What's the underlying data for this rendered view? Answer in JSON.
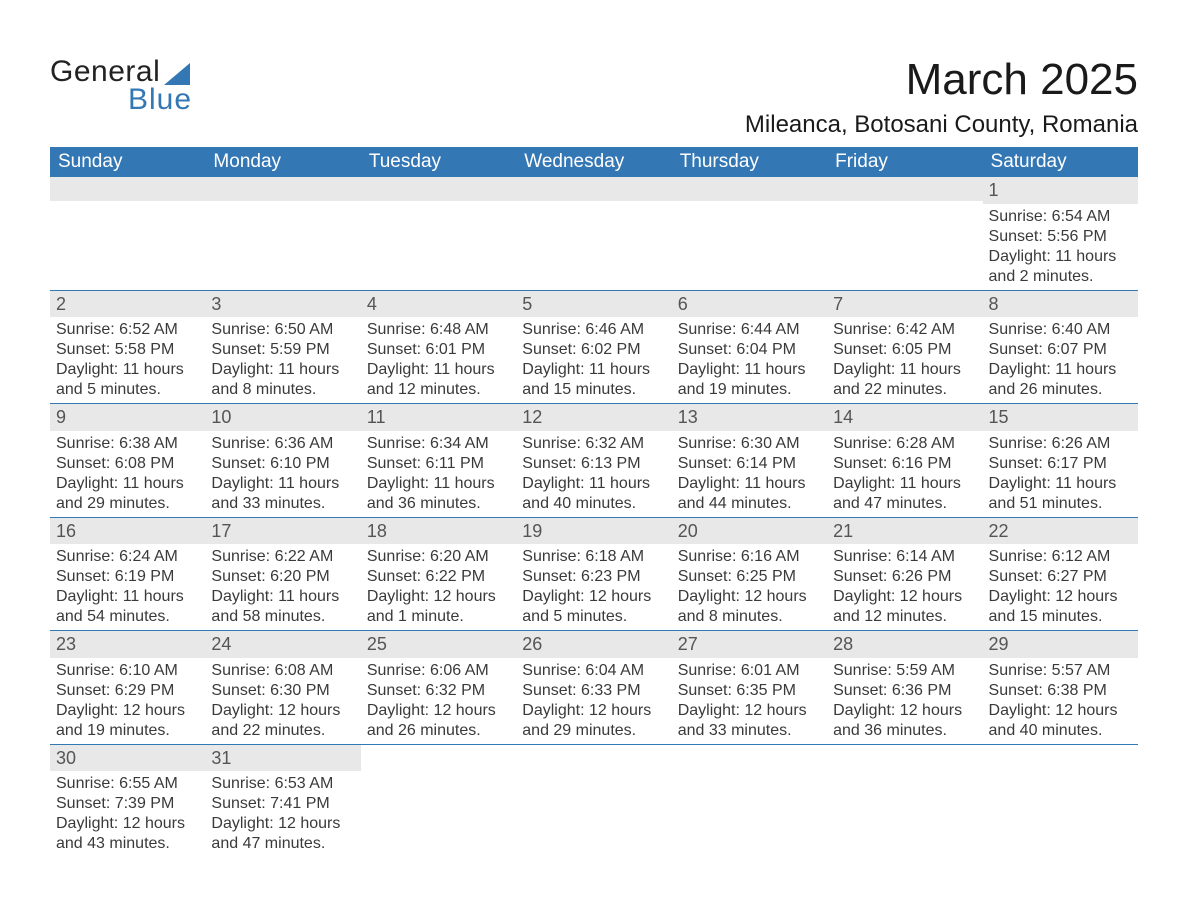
{
  "logo": {
    "line1": "General",
    "line2": "Blue"
  },
  "title": "March 2025",
  "location": "Mileanca, Botosani County, Romania",
  "colors": {
    "header_blue": "#3477b5",
    "daynum_bg": "#e8e8e8",
    "text": "#3a3a3a",
    "background": "#ffffff"
  },
  "weekday_labels": [
    "Sunday",
    "Monday",
    "Tuesday",
    "Wednesday",
    "Thursday",
    "Friday",
    "Saturday"
  ],
  "labels": {
    "sunrise": "Sunrise: ",
    "sunset": "Sunset: ",
    "daylight": "Daylight: "
  },
  "weeks": [
    [
      null,
      null,
      null,
      null,
      null,
      null,
      {
        "n": "1",
        "sunrise": "6:54 AM",
        "sunset": "5:56 PM",
        "daylight": "11 hours and 2 minutes."
      }
    ],
    [
      {
        "n": "2",
        "sunrise": "6:52 AM",
        "sunset": "5:58 PM",
        "daylight": "11 hours and 5 minutes."
      },
      {
        "n": "3",
        "sunrise": "6:50 AM",
        "sunset": "5:59 PM",
        "daylight": "11 hours and 8 minutes."
      },
      {
        "n": "4",
        "sunrise": "6:48 AM",
        "sunset": "6:01 PM",
        "daylight": "11 hours and 12 minutes."
      },
      {
        "n": "5",
        "sunrise": "6:46 AM",
        "sunset": "6:02 PM",
        "daylight": "11 hours and 15 minutes."
      },
      {
        "n": "6",
        "sunrise": "6:44 AM",
        "sunset": "6:04 PM",
        "daylight": "11 hours and 19 minutes."
      },
      {
        "n": "7",
        "sunrise": "6:42 AM",
        "sunset": "6:05 PM",
        "daylight": "11 hours and 22 minutes."
      },
      {
        "n": "8",
        "sunrise": "6:40 AM",
        "sunset": "6:07 PM",
        "daylight": "11 hours and 26 minutes."
      }
    ],
    [
      {
        "n": "9",
        "sunrise": "6:38 AM",
        "sunset": "6:08 PM",
        "daylight": "11 hours and 29 minutes."
      },
      {
        "n": "10",
        "sunrise": "6:36 AM",
        "sunset": "6:10 PM",
        "daylight": "11 hours and 33 minutes."
      },
      {
        "n": "11",
        "sunrise": "6:34 AM",
        "sunset": "6:11 PM",
        "daylight": "11 hours and 36 minutes."
      },
      {
        "n": "12",
        "sunrise": "6:32 AM",
        "sunset": "6:13 PM",
        "daylight": "11 hours and 40 minutes."
      },
      {
        "n": "13",
        "sunrise": "6:30 AM",
        "sunset": "6:14 PM",
        "daylight": "11 hours and 44 minutes."
      },
      {
        "n": "14",
        "sunrise": "6:28 AM",
        "sunset": "6:16 PM",
        "daylight": "11 hours and 47 minutes."
      },
      {
        "n": "15",
        "sunrise": "6:26 AM",
        "sunset": "6:17 PM",
        "daylight": "11 hours and 51 minutes."
      }
    ],
    [
      {
        "n": "16",
        "sunrise": "6:24 AM",
        "sunset": "6:19 PM",
        "daylight": "11 hours and 54 minutes."
      },
      {
        "n": "17",
        "sunrise": "6:22 AM",
        "sunset": "6:20 PM",
        "daylight": "11 hours and 58 minutes."
      },
      {
        "n": "18",
        "sunrise": "6:20 AM",
        "sunset": "6:22 PM",
        "daylight": "12 hours and 1 minute."
      },
      {
        "n": "19",
        "sunrise": "6:18 AM",
        "sunset": "6:23 PM",
        "daylight": "12 hours and 5 minutes."
      },
      {
        "n": "20",
        "sunrise": "6:16 AM",
        "sunset": "6:25 PM",
        "daylight": "12 hours and 8 minutes."
      },
      {
        "n": "21",
        "sunrise": "6:14 AM",
        "sunset": "6:26 PM",
        "daylight": "12 hours and 12 minutes."
      },
      {
        "n": "22",
        "sunrise": "6:12 AM",
        "sunset": "6:27 PM",
        "daylight": "12 hours and 15 minutes."
      }
    ],
    [
      {
        "n": "23",
        "sunrise": "6:10 AM",
        "sunset": "6:29 PM",
        "daylight": "12 hours and 19 minutes."
      },
      {
        "n": "24",
        "sunrise": "6:08 AM",
        "sunset": "6:30 PM",
        "daylight": "12 hours and 22 minutes."
      },
      {
        "n": "25",
        "sunrise": "6:06 AM",
        "sunset": "6:32 PM",
        "daylight": "12 hours and 26 minutes."
      },
      {
        "n": "26",
        "sunrise": "6:04 AM",
        "sunset": "6:33 PM",
        "daylight": "12 hours and 29 minutes."
      },
      {
        "n": "27",
        "sunrise": "6:01 AM",
        "sunset": "6:35 PM",
        "daylight": "12 hours and 33 minutes."
      },
      {
        "n": "28",
        "sunrise": "5:59 AM",
        "sunset": "6:36 PM",
        "daylight": "12 hours and 36 minutes."
      },
      {
        "n": "29",
        "sunrise": "5:57 AM",
        "sunset": "6:38 PM",
        "daylight": "12 hours and 40 minutes."
      }
    ],
    [
      {
        "n": "30",
        "sunrise": "6:55 AM",
        "sunset": "7:39 PM",
        "daylight": "12 hours and 43 minutes."
      },
      {
        "n": "31",
        "sunrise": "6:53 AM",
        "sunset": "7:41 PM",
        "daylight": "12 hours and 47 minutes."
      },
      null,
      null,
      null,
      null,
      null
    ]
  ]
}
